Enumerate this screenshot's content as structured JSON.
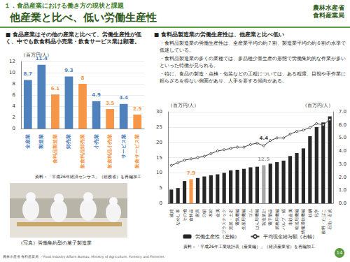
{
  "header": {
    "section": "１．食品産業における働き方の現状と課題",
    "title": "他産業と比べ、低い労働生産性",
    "org": [
      "農林水産省",
      "食料産業局"
    ]
  },
  "left": {
    "heading": "■ 食品産業はその他の産業と比べて、労働生産性が低く、中でも飲食料品小売業・飲食サービス業は顕著。",
    "source": "資料：「平成26年経済センサス」（総務省）を再編加工",
    "photo_caption": "（写真）労働集約型の菓子製造業"
  },
  "right": {
    "heading": "■ 食料品製造業の労働生産性は、他産業と比べ低い",
    "bullets": [
      "・食料品製造業の労働生産性は、全産業平均の約７割、製造業平均の約６割の水準で低迷している。",
      "・食料品製造業の多くの業種では、多品種少量生産の形態で労働集約的な作業が多いといった特徴が見られる。",
      "・特に、食品の製造・点検・包装などの工程については、ある程度、目視や手作業に頼らざるを得ない側面があり、人手を要する傾向がある。"
    ],
    "source": "資料：「平成26年工業統計表（産業編）」（経済産業省）を再編加工"
  },
  "footer": {
    "text": "農林水産省 食料産業局 ／Food Industry Affairs Bureau,  Ministry of Agriculture, Forestry and Fisheries.",
    "page": 14
  },
  "chart_data": [
    {
      "type": "bar",
      "y_label": "（百万円/人）",
      "categories": [
        "全産業",
        "製造業",
        "食料品製造業",
        "卸売業",
        "飲食料品卸売業",
        "小売業",
        "飲食料品小売業",
        "サービス業",
        "飲食サービス業"
      ],
      "values": [
        8.7,
        11.4,
        6.1,
        9.3,
        8,
        4.9,
        3.5,
        4.4,
        2.5
      ],
      "colors": [
        "#4f81bd",
        "#4f81bd",
        "#f79646",
        "#4f81bd",
        "#f79646",
        "#4f81bd",
        "#f79646",
        "#4f81bd",
        "#f79646"
      ],
      "ylim": [
        0,
        12
      ],
      "yticks": [
        0,
        2,
        4,
        6,
        8,
        10,
        12
      ],
      "grid": true,
      "data_labels": true
    },
    {
      "type": "bar",
      "y_label": "（百万円/人）",
      "y2_label": "（百万円/人）",
      "categories": [
        "繊維",
        "なめし革",
        "その他",
        "食料品",
        "家具",
        "印刷",
        "木材",
        "金属",
        "プラスチック",
        "窯業・土石",
        "電気機械",
        "生産用機械",
        "ゴム",
        "はん用機械",
        "製造業計",
        "電子部品",
        "業務用機械",
        "パルプ・紙",
        "非鉄金属",
        "輸送用機械",
        "情報通信機械",
        "鉄鋼",
        "化学",
        "飲料・たばこ",
        "石油・石炭"
      ],
      "series": [
        {
          "name": "労働生産性（左軸）",
          "type": "bar",
          "color": "#262626",
          "colors": [
            "#262626",
            "#262626",
            "#262626",
            "#f79646",
            "#262626",
            "#262626",
            "#262626",
            "#262626",
            "#262626",
            "#262626",
            "#262626",
            "#262626",
            "#262626",
            "#262626",
            "#a6a6a6",
            "#262626",
            "#262626",
            "#262626",
            "#262626",
            "#262626",
            "#262626",
            "#262626",
            "#262626",
            "#262626",
            "#262626"
          ],
          "values": [
            4.5,
            5.0,
            7.3,
            7.9,
            8.3,
            8.8,
            9.2,
            9.5,
            10.0,
            10.8,
            11.0,
            11.3,
            11.8,
            12.0,
            12.5,
            13.0,
            13.5,
            14.0,
            15.5,
            16.5,
            18.0,
            22.0,
            25.0,
            26.5,
            28.5
          ],
          "value_labels": [
            null,
            null,
            null,
            "7.9",
            null,
            null,
            null,
            null,
            null,
            null,
            null,
            null,
            null,
            null,
            "12.5",
            null,
            null,
            null,
            null,
            null,
            null,
            null,
            null,
            null,
            null
          ]
        },
        {
          "name": "平均現金給与額（右軸）",
          "type": "line",
          "axis": "y2",
          "color": "#404040",
          "marker": "circle",
          "values": [
            2.9,
            3.1,
            3.3,
            3.4,
            3.5,
            3.6,
            3.8,
            4.0,
            4.1,
            4.2,
            4.3,
            4.3,
            4.5,
            4.6,
            4.4,
            4.8,
            5.0,
            5.0,
            5.3,
            5.5,
            5.6,
            5.8,
            6.1,
            6.0,
            6.4
          ],
          "value_labels": [
            null,
            null,
            null,
            null,
            null,
            null,
            null,
            null,
            null,
            null,
            null,
            null,
            null,
            null,
            "4.4",
            null,
            null,
            null,
            null,
            null,
            null,
            null,
            null,
            null,
            null
          ]
        }
      ],
      "ylim": [
        0,
        30
      ],
      "yticks": [
        0,
        5,
        10,
        15,
        20,
        25,
        30
      ],
      "y2lim": [
        0,
        7
      ],
      "y2ticks": [
        {
          "value": 0,
          "label": "0.0"
        },
        {
          "value": 1,
          "label": "1.0"
        },
        {
          "value": 2,
          "label": "2.0"
        },
        {
          "value": 3,
          "label": "3.0"
        },
        {
          "value": 4,
          "label": "4.0"
        },
        {
          "value": 5,
          "label": "5.0"
        },
        {
          "value": 6,
          "label": "6.0"
        },
        {
          "value": 7,
          "label": "7.0"
        }
      ],
      "grid": true,
      "legend": "bottom"
    }
  ]
}
